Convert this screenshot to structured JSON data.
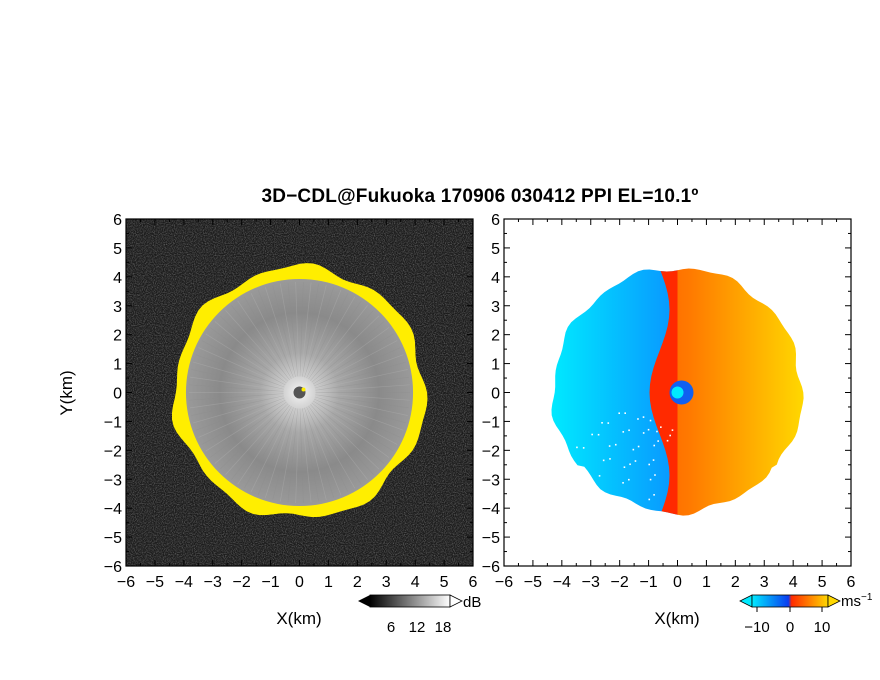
{
  "title": "3D−CDL@Fukuoka 170906 030412 PPI EL=10.1º",
  "colors": {
    "background": "#1c1c1c",
    "ring": "#ffee00",
    "velocity_negative_dark": "#0a3cf0",
    "velocity_negative_light": "#00eaff",
    "velocity_positive_dark": "#ff2a00",
    "velocity_positive_light": "#ffd800"
  },
  "chart_data": [
    {
      "type": "heatmap",
      "panel": "left",
      "quantity": "SNR",
      "title": "",
      "xlabel": "X(km)",
      "ylabel": "Y(km)",
      "xlim": [
        -6,
        6
      ],
      "ylim": [
        -6,
        6
      ],
      "xticks": [
        "−6",
        "−5",
        "−4",
        "−3",
        "−2",
        "−1",
        "0",
        "1",
        "2",
        "3",
        "4",
        "5",
        "6"
      ],
      "yticks": [
        "−6",
        "−5",
        "−4",
        "−3",
        "−2",
        "−1",
        "0",
        "1",
        "2",
        "3",
        "4",
        "5",
        "6"
      ],
      "ring_radius_km": 4.1,
      "colorbar": {
        "ticks": [
          "6",
          "12",
          "18"
        ],
        "unit": "dB"
      }
    },
    {
      "type": "heatmap",
      "panel": "right",
      "quantity": "Doppler velocity",
      "title": "",
      "xlabel": "X(km)",
      "ylabel": "",
      "xlim": [
        -6,
        6
      ],
      "ylim": [
        -6,
        6
      ],
      "xticks": [
        "−6",
        "−5",
        "−4",
        "−3",
        "−2",
        "−1",
        "0",
        "1",
        "2",
        "3",
        "4",
        "5",
        "6"
      ],
      "yticks": [
        "−6",
        "−5",
        "−4",
        "−3",
        "−2",
        "−1",
        "0",
        "1",
        "2",
        "3",
        "4",
        "5",
        "6"
      ],
      "data_radius_km": 4.3,
      "colorbar": {
        "ticks": [
          "−10",
          "0",
          "10"
        ],
        "unit": "ms",
        "unit_exp": "−1"
      }
    }
  ]
}
